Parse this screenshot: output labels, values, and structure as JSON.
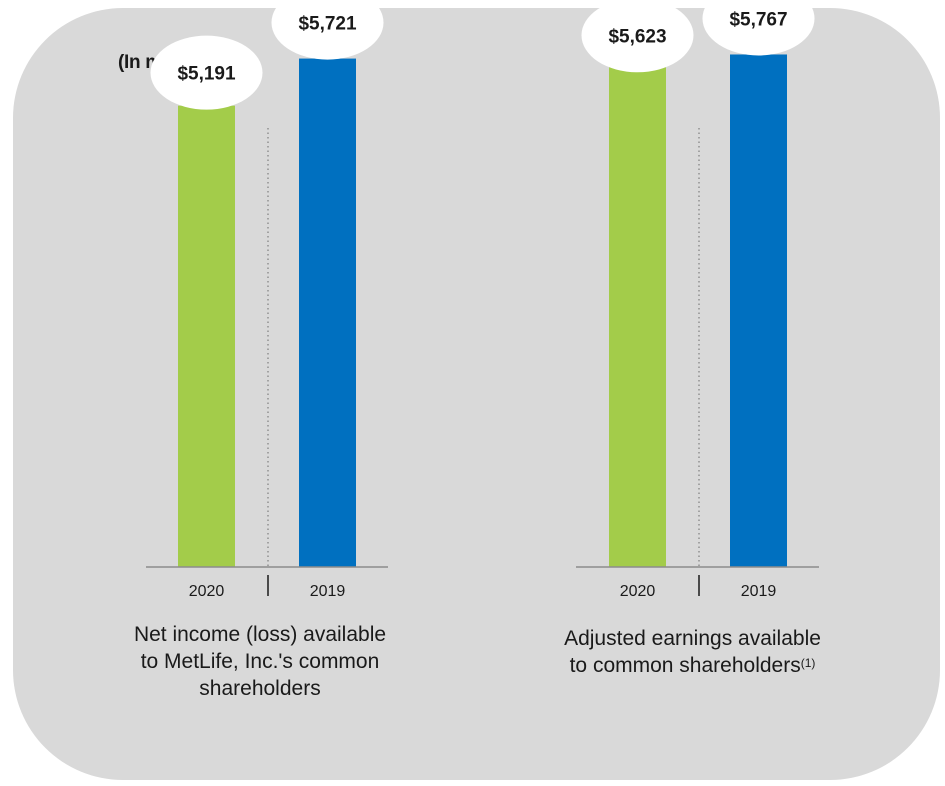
{
  "unit_label": "(In millions)",
  "colors": {
    "year_2020": "#a3cc4a",
    "year_2019": "#0070c0",
    "panel": "#d9d9d9"
  },
  "chart_data": [
    {
      "type": "bar",
      "title": "Net income (loss) available to MetLife, Inc.'s common shareholders",
      "title_lines": [
        "Net income (loss) available",
        "to MetLife, Inc.'s common",
        "shareholders"
      ],
      "categories": [
        "2020",
        "2019"
      ],
      "values": [
        5191,
        5721
      ],
      "value_labels": [
        "$5,191",
        "$5,721"
      ],
      "ylim": [
        0,
        6380
      ]
    },
    {
      "type": "bar",
      "title": "Adjusted earnings available to common shareholders(1)",
      "title_lines": [
        "Adjusted earnings available",
        "to common shareholders"
      ],
      "footnote_ref": "(1)",
      "categories": [
        "2020",
        "2019"
      ],
      "values": [
        5623,
        5767
      ],
      "value_labels": [
        "$5,623",
        "$5,767"
      ],
      "ylim": [
        0,
        6380
      ]
    }
  ]
}
